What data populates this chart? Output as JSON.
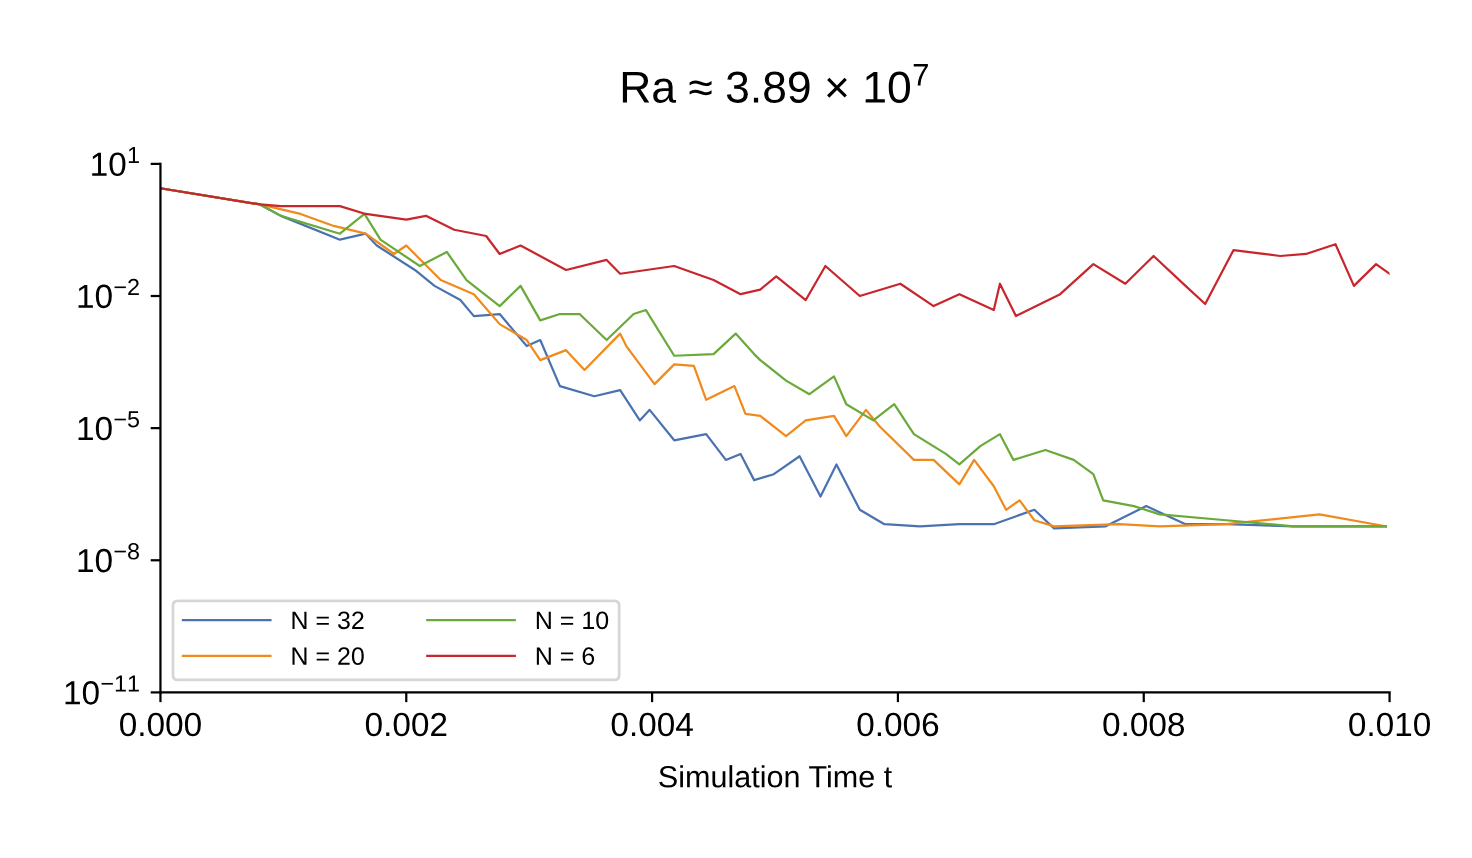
{
  "chart_data": {
    "type": "line",
    "title": "Ra ≈ 3.89 × 10$^{7}$",
    "xlabel": "Simulation Time t",
    "series": [
      {
        "name": "N = 32",
        "color": "#4a72b0",
        "x": [
          0,
          0.00081,
          0.00098,
          0.00146,
          0.00167,
          0.00176,
          0.00207,
          0.00223,
          0.00244,
          0.00255,
          0.00276,
          0.00298,
          0.00309,
          0.00325,
          0.00353,
          0.00374,
          0.0039,
          0.00398,
          0.00418,
          0.00444,
          0.0046,
          0.00472,
          0.00483,
          0.00499,
          0.0052,
          0.00537,
          0.0055,
          0.00569,
          0.00589,
          0.00618,
          0.0065,
          0.00678,
          0.00711,
          0.00727,
          0.00769,
          0.00802,
          0.00834,
          0.00867,
          0.00922,
          0.00997
        ],
        "values": [
          2.8,
          1.2,
          0.66,
          0.19,
          0.26,
          0.14,
          0.039,
          0.017,
          0.0081,
          0.0035,
          0.0039,
          0.00073,
          0.001,
          9e-05,
          5.3e-05,
          7.3e-05,
          1.5e-05,
          2.6e-05,
          5.3e-06,
          7.3e-06,
          1.9e-06,
          2.6e-06,
          6.6e-07,
          9e-07,
          2.3e-06,
          2.8e-07,
          1.5e-06,
          1.4e-07,
          6.6e-08,
          5.9e-08,
          6.6e-08,
          6.6e-08,
          1.4e-07,
          5.3e-08,
          5.9e-08,
          1.7e-07,
          6.6e-08,
          6.6e-08,
          5.9e-08,
          5.9e-08
        ]
      },
      {
        "name": "N = 20",
        "color": "#f08a1c",
        "x": [
          0,
          0.00081,
          0.00114,
          0.00141,
          0.00167,
          0.0019,
          0.002,
          0.00228,
          0.00255,
          0.00276,
          0.00298,
          0.00309,
          0.0033,
          0.00345,
          0.00374,
          0.00379,
          0.00402,
          0.00418,
          0.00434,
          0.00444,
          0.00467,
          0.00476,
          0.00488,
          0.00509,
          0.00525,
          0.00548,
          0.00558,
          0.00574,
          0.00585,
          0.00613,
          0.00629,
          0.0065,
          0.00662,
          0.00678,
          0.00688,
          0.00699,
          0.00711,
          0.00727,
          0.0078,
          0.00813,
          0.00867,
          0.00943,
          0.00997
        ],
        "values": [
          2.8,
          1.2,
          0.73,
          0.39,
          0.26,
          0.09,
          0.14,
          0.023,
          0.011,
          0.0023,
          0.001,
          0.00035,
          0.00059,
          0.00021,
          0.0014,
          0.00073,
          0.0001,
          0.00028,
          0.00026,
          4.4e-05,
          9e-05,
          2.1e-05,
          1.9e-05,
          6.6e-06,
          1.5e-05,
          1.9e-05,
          6.6e-06,
          2.6e-05,
          1.1e-05,
          1.9e-06,
          1.9e-06,
          5.3e-07,
          1.9e-06,
          4.8e-07,
          1.4e-07,
          2.3e-07,
          8.1e-08,
          5.9e-08,
          6.6e-08,
          5.9e-08,
          6.6e-08,
          1.1e-07,
          5.9e-08
        ]
      },
      {
        "name": "N = 10",
        "color": "#6aaa3a",
        "x": [
          0,
          0.00081,
          0.00098,
          0.00146,
          0.00166,
          0.00179,
          0.00211,
          0.00233,
          0.00249,
          0.00276,
          0.00293,
          0.00309,
          0.00325,
          0.00341,
          0.00363,
          0.00385,
          0.00395,
          0.00418,
          0.0045,
          0.00468,
          0.00483,
          0.00488,
          0.00509,
          0.00528,
          0.00548,
          0.00558,
          0.0058,
          0.00597,
          0.00613,
          0.00639,
          0.0065,
          0.00667,
          0.00683,
          0.00694,
          0.0072,
          0.00743,
          0.00759,
          0.00767,
          0.00792,
          0.00813,
          0.00867,
          0.00922,
          0.00997
        ],
        "values": [
          2.8,
          1.2,
          0.66,
          0.26,
          0.73,
          0.19,
          0.048,
          0.1,
          0.023,
          0.0059,
          0.017,
          0.0028,
          0.0039,
          0.0039,
          0.001,
          0.0039,
          0.0048,
          0.00044,
          0.00048,
          0.0014,
          0.00048,
          0.00035,
          0.00012,
          5.9e-05,
          0.00015,
          3.5e-05,
          1.5e-05,
          3.5e-05,
          7.3e-06,
          2.6e-06,
          1.5e-06,
          3.9e-06,
          7.3e-06,
          1.9e-06,
          3.2e-06,
          1.9e-06,
          9e-07,
          2.3e-07,
          1.7e-07,
          1.1e-07,
          8.1e-08,
          5.9e-08,
          5.9e-08
        ]
      },
      {
        "name": "N = 6",
        "color": "#c8262c",
        "x": [
          0,
          0.00081,
          0.00098,
          0.00146,
          0.00167,
          0.002,
          0.00216,
          0.00239,
          0.00265,
          0.00276,
          0.00293,
          0.0033,
          0.00363,
          0.00374,
          0.00418,
          0.0045,
          0.00472,
          0.00488,
          0.00501,
          0.00525,
          0.00541,
          0.00569,
          0.00602,
          0.00629,
          0.0065,
          0.00678,
          0.00683,
          0.00696,
          0.00732,
          0.00759,
          0.00785,
          0.00808,
          0.00834,
          0.0085,
          0.00873,
          0.00911,
          0.00932,
          0.00956,
          0.00971,
          0.00989,
          0.01
        ],
        "values": [
          2.8,
          1.2,
          1.1,
          1.1,
          0.73,
          0.54,
          0.66,
          0.32,
          0.23,
          0.09,
          0.14,
          0.039,
          0.066,
          0.032,
          0.048,
          0.023,
          0.011,
          0.014,
          0.028,
          0.0081,
          0.048,
          0.01,
          0.019,
          0.0059,
          0.011,
          0.0048,
          0.019,
          0.0035,
          0.011,
          0.053,
          0.019,
          0.081,
          0.017,
          0.0066,
          0.11,
          0.081,
          0.09,
          0.15,
          0.017,
          0.053,
          0.032
        ]
      }
    ],
    "log": "y",
    "xlim": [
      0,
      0.01
    ],
    "ylim": [
      1e-11,
      10
    ],
    "xticks": [
      {
        "value": 0,
        "label": "0.000"
      },
      {
        "value": 0.002,
        "label": "0.002"
      },
      {
        "value": 0.004,
        "label": "0.004"
      },
      {
        "value": 0.006,
        "label": "0.006"
      },
      {
        "value": 0.008,
        "label": "0.008"
      },
      {
        "value": 0.01,
        "label": "0.010"
      }
    ],
    "yticks": [
      {
        "value": 1e-11,
        "label": "10$^{−11}$"
      },
      {
        "value": 1e-08,
        "label": "10$^{−8}$"
      },
      {
        "value": 1e-05,
        "label": "10$^{−5}$"
      },
      {
        "value": 0.01,
        "label": "10$^{−2}$"
      },
      {
        "value": 10,
        "label": "10$^{1}$"
      }
    ],
    "grid": false,
    "legend": "lower left",
    "marker": "none",
    "line_style": "solid"
  }
}
